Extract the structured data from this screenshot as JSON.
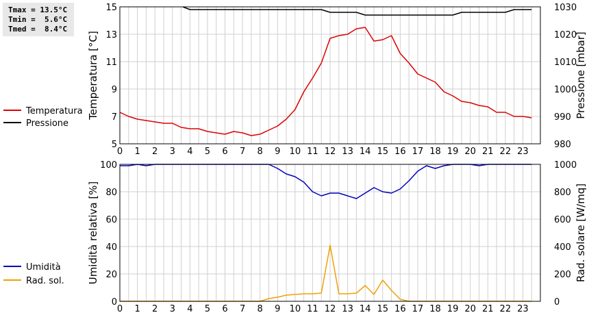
{
  "stats": {
    "tmax": "Tmax = 13.5°C",
    "tmin": "Tmin =  5.6°C",
    "tmed": "Tmed =  8.4°C"
  },
  "colors": {
    "temperature": "#dd0000",
    "pressure": "#000000",
    "humidity": "#0000bb",
    "radiation": "#f0a000",
    "grid": "#cfcfcf"
  },
  "chart_data": [
    {
      "type": "line",
      "xlabel": "",
      "xlim": [
        0,
        24
      ],
      "xticks": [
        0,
        1,
        2,
        3,
        4,
        5,
        6,
        7,
        8,
        9,
        10,
        11,
        12,
        13,
        14,
        15,
        16,
        17,
        18,
        19,
        20,
        21,
        22,
        23
      ],
      "ylabel": "Temperatura [°C]",
      "ylim": [
        5,
        15
      ],
      "yticks": [
        5,
        7,
        9,
        11,
        13,
        15
      ],
      "y2label": "Pressione [mbar]",
      "y2lim": [
        980,
        1030
      ],
      "y2ticks": [
        980,
        990,
        1000,
        1010,
        1020,
        1030
      ],
      "grid": true,
      "legend": "left",
      "series": [
        {
          "name": "Temperatura",
          "axis": "left",
          "x": [
            0,
            0.5,
            1,
            1.5,
            2,
            2.5,
            3,
            3.5,
            4,
            4.5,
            5,
            5.5,
            6,
            6.5,
            7,
            7.5,
            8,
            8.5,
            9,
            9.5,
            10,
            10.5,
            11,
            11.5,
            12,
            12.5,
            13,
            13.5,
            14,
            14.5,
            15,
            15.5,
            16,
            16.5,
            17,
            17.5,
            18,
            18.5,
            19,
            19.5,
            20,
            20.5,
            21,
            21.5,
            22,
            22.5,
            23,
            23.5
          ],
          "y": [
            7.3,
            7.0,
            6.8,
            6.7,
            6.6,
            6.5,
            6.5,
            6.2,
            6.1,
            6.1,
            5.9,
            5.8,
            5.7,
            5.9,
            5.8,
            5.6,
            5.7,
            6.0,
            6.3,
            6.8,
            7.5,
            8.8,
            9.8,
            10.9,
            12.7,
            12.9,
            13.0,
            13.4,
            13.5,
            12.5,
            12.6,
            12.9,
            11.6,
            10.9,
            10.1,
            9.8,
            9.5,
            8.8,
            8.5,
            8.1,
            8.0,
            7.8,
            7.7,
            7.3,
            7.3,
            7.0,
            7.0,
            6.9
          ]
        },
        {
          "name": "Pressione",
          "axis": "right",
          "x": [
            3.6,
            4,
            11.5,
            12,
            13.5,
            14,
            19,
            19.5,
            22,
            22.5,
            23.5
          ],
          "y": [
            1030,
            1029,
            1029,
            1028,
            1028,
            1027,
            1027,
            1028,
            1028,
            1029,
            1029
          ]
        }
      ]
    },
    {
      "type": "line",
      "xlabel": "",
      "xlim": [
        0,
        24
      ],
      "xticks": [
        0,
        1,
        2,
        3,
        4,
        5,
        6,
        7,
        8,
        9,
        10,
        11,
        12,
        13,
        14,
        15,
        16,
        17,
        18,
        19,
        20,
        21,
        22,
        23
      ],
      "ylabel": "Umidità relativa [%]",
      "ylim": [
        0,
        100
      ],
      "yticks": [
        0,
        20,
        40,
        60,
        80,
        100
      ],
      "y2label": "Rad. solare [W/mq]",
      "y2lim": [
        0,
        1000
      ],
      "y2ticks": [
        0,
        200,
        400,
        600,
        800,
        1000
      ],
      "grid": true,
      "legend": "left",
      "series": [
        {
          "name": "Umidità",
          "axis": "left",
          "x": [
            0,
            0.5,
            1,
            1.5,
            2,
            8.5,
            9,
            9.5,
            10,
            10.5,
            11,
            11.5,
            12,
            12.5,
            13,
            13.5,
            14,
            14.5,
            15,
            15.5,
            16,
            16.5,
            17,
            17.5,
            18,
            18.5,
            19,
            20,
            20.5,
            21,
            23.5
          ],
          "y": [
            99,
            99,
            100,
            99,
            100,
            100,
            97,
            93,
            91,
            87,
            80,
            77,
            79,
            79,
            77,
            75,
            79,
            83,
            80,
            79,
            82,
            88,
            95,
            99,
            97,
            99,
            100,
            100,
            99,
            100,
            100
          ]
        },
        {
          "name": "Rad. sol.",
          "axis": "right",
          "x": [
            0,
            8,
            8.5,
            9,
            9.5,
            10,
            10.5,
            11,
            11.5,
            12,
            12.5,
            13,
            13.5,
            14,
            14.5,
            15,
            15.5,
            16,
            16.5,
            23.5
          ],
          "y": [
            0,
            0,
            20,
            30,
            45,
            50,
            55,
            55,
            60,
            410,
            55,
            55,
            60,
            115,
            50,
            155,
            80,
            15,
            0,
            0
          ]
        }
      ]
    }
  ]
}
